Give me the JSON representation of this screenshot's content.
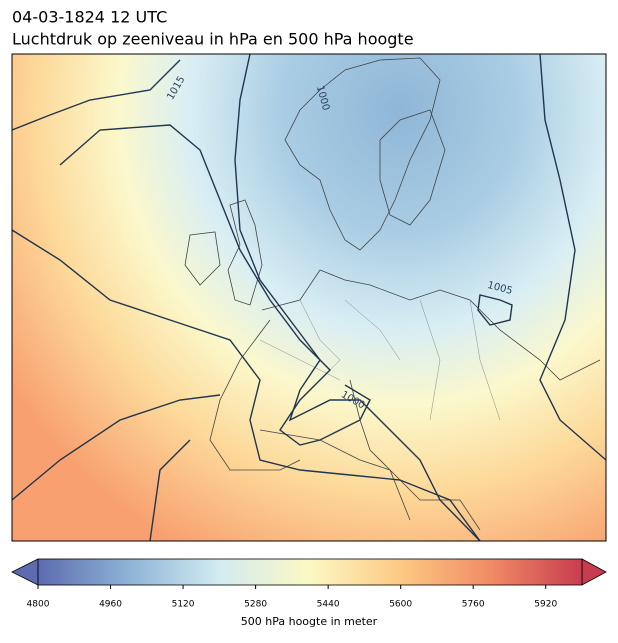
{
  "header": {
    "title": "04-03-1824 12 UTC",
    "subtitle": "Luchtdruk op zeeniveau in hPa en 500 hPa hoogte"
  },
  "map": {
    "contour_labels": [
      "1015",
      "1000",
      "1005",
      "1000"
    ]
  },
  "colorbar": {
    "label": "500 hPa hoogte in meter",
    "clim": [
      4800,
      6000
    ],
    "ticks": [
      4800,
      4960,
      5120,
      5280,
      5440,
      5600,
      5760,
      5920
    ],
    "colors": [
      "#5d6bb0",
      "#8db3d6",
      "#d3ebf2",
      "#fbf8c4",
      "#fdc984",
      "#f08a64",
      "#c83c4f"
    ]
  }
}
